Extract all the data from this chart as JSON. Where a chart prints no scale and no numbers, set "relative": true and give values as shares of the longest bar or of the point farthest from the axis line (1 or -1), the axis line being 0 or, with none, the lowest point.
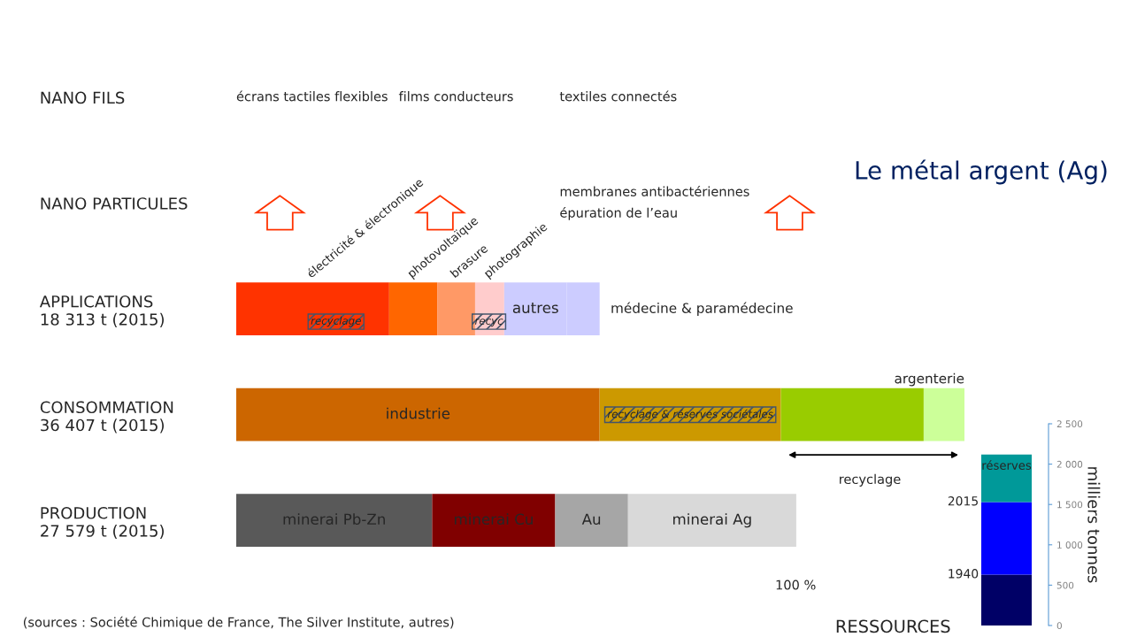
{
  "chart_data": [
    {
      "type": "bar",
      "orientation": "horizontal",
      "stacked": true,
      "relative": true,
      "title": "Le métal argent (Ag)",
      "categories": [
        "NANO FILS",
        "NANO PARTICULES",
        "APPLICATIONS\n18 313 t (2015)",
        "CONSOMMATION\n36 407 t (2015)",
        "PRODUCTION\n27 579 t (2015)"
      ],
      "series": [
        {
          "name": "électricité & électronique",
          "color": "#ff3300",
          "values": [
            null,
            null,
            0.21,
            null,
            null
          ]
        },
        {
          "name": "photovoltaïque",
          "color": "#ff6600",
          "values": [
            null,
            null,
            0.066,
            null,
            null
          ]
        },
        {
          "name": "brasure",
          "color": "#ff9966",
          "values": [
            null,
            null,
            0.052,
            null,
            null
          ]
        },
        {
          "name": "photographie",
          "color": "#ffcccc",
          "values": [
            null,
            null,
            0.04,
            null,
            null
          ]
        },
        {
          "name": "autres",
          "color": "#ccccff",
          "values": [
            null,
            null,
            0.086,
            null,
            null
          ]
        },
        {
          "name": "médecine & paramédecine",
          "color": "#ccccff",
          "values": [
            null,
            null,
            0.045,
            null,
            null
          ]
        },
        {
          "name": "industrie",
          "color": "#cc6600",
          "values": [
            null,
            null,
            null,
            0.499,
            null
          ]
        },
        {
          "color": "#cc9900",
          "values": [
            null,
            null,
            null,
            0.249,
            null
          ]
        },
        {
          "color": "#99cc00",
          "values": [
            null,
            null,
            null,
            0.196,
            null
          ]
        },
        {
          "name": "argenterie",
          "color": "#ccff99",
          "values": [
            null,
            null,
            null,
            0.056,
            null
          ]
        },
        {
          "name": "minerai Pb-Zn",
          "color": "#595959",
          "values": [
            null,
            null,
            null,
            null,
            0.269
          ]
        },
        {
          "name": "minerai Cu",
          "color": "#800000",
          "values": [
            null,
            null,
            null,
            null,
            0.169
          ]
        },
        {
          "name": "Au",
          "color": "#a6a6a6",
          "values": [
            null,
            null,
            null,
            null,
            0.1
          ]
        },
        {
          "name": "minerai Ag",
          "color": "#d9d9d9",
          "values": [
            null,
            null,
            null,
            null,
            0.231
          ]
        }
      ],
      "annotations": [
        "écrans tactiles flexibles",
        "films conducteurs",
        "textiles connectés",
        "membranes antibactériennes\népuration de l’eau",
        "recyclage",
        "recyc",
        "recyclage & réserves sociétales",
        "recyclage",
        "100 %",
        "(sources : Société Chimique de France, The Silver Institute, autres)"
      ]
    },
    {
      "type": "bar",
      "stacked": true,
      "categories": [
        null
      ],
      "series": [
        {
          "name": "1940",
          "color": "#000066",
          "values": [
            630
          ]
        },
        {
          "name": "2015",
          "color": "#0000ff",
          "values": [
            900
          ]
        },
        {
          "name": "réserves",
          "color": "#009999",
          "values": [
            590
          ]
        }
      ],
      "ylim": [
        0,
        2500
      ],
      "yticks": [
        0,
        500,
        {
          "value": 1000,
          "label": "1 000"
        },
        {
          "value": 1500,
          "label": "1 500"
        },
        {
          "value": 2000,
          "label": "2 000"
        },
        {
          "value": 2500,
          "label": "2 500"
        }
      ],
      "ylabel": "milliers tonnes",
      "xlabel": "RESSOURCES",
      "tick_labels": "y"
    }
  ]
}
